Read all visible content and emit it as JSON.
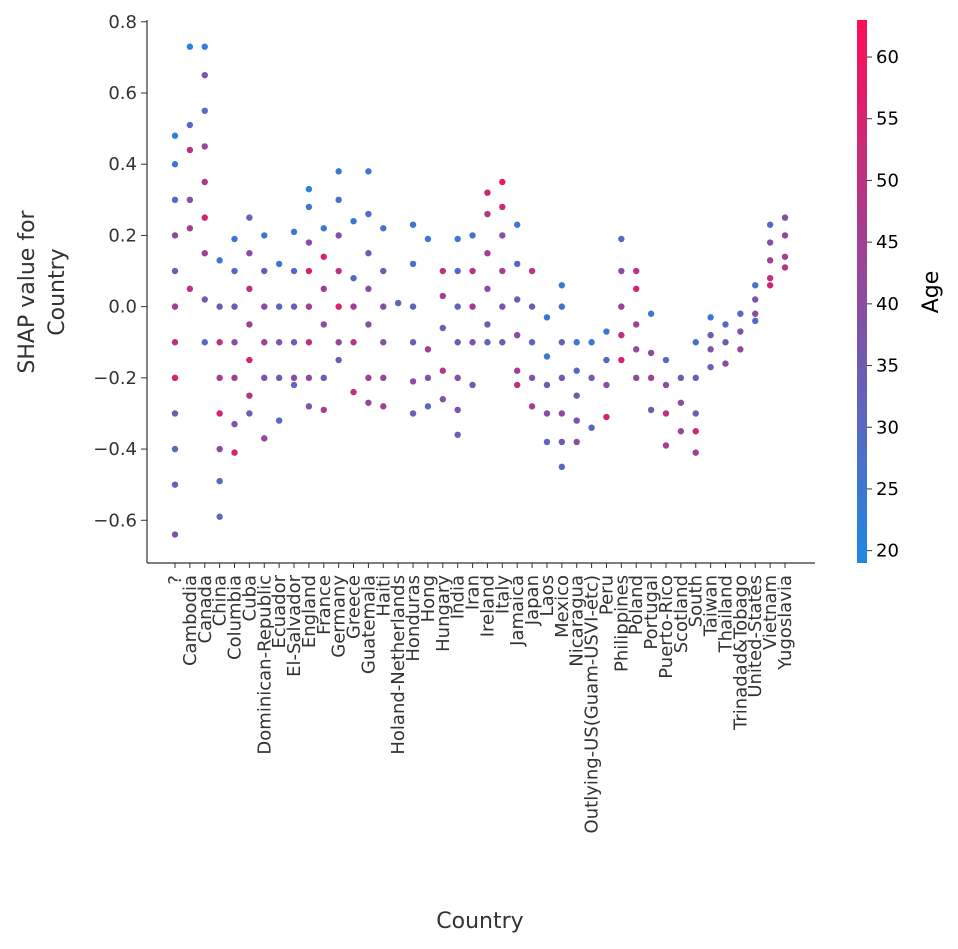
{
  "chart_data": {
    "type": "scatter",
    "xlabel": "Country",
    "ylabel": [
      "SHAP value for",
      "Country"
    ],
    "colorbar_label": "Age",
    "colormap": [
      "#1e88e5",
      "#ff0d57"
    ],
    "clim": [
      19,
      63
    ],
    "cticks": [
      20,
      25,
      30,
      35,
      40,
      45,
      50,
      55,
      60
    ],
    "ylim": [
      -0.72,
      0.805
    ],
    "yticks": [
      {
        "value": -0.6,
        "label": "−0.6"
      },
      {
        "value": -0.4,
        "label": "−0.4"
      },
      {
        "value": -0.2,
        "label": "−0.2"
      },
      {
        "value": 0,
        "label": "0.0"
      },
      0.2,
      0.4,
      0.6,
      0.8
    ],
    "categories": [
      "?",
      "Cambodia",
      "Canada",
      "China",
      "Columbia",
      "Cuba",
      "Dominican-Republic",
      "Ecuador",
      "El-Salvador",
      "England",
      "France",
      "Germany",
      "Greece",
      "Guatemala",
      "Haiti",
      "Holand-Netherlands",
      "Honduras",
      "Hong",
      "Hungary",
      "India",
      "Iran",
      "Ireland",
      "Italy",
      "Jamaica",
      "Japan",
      "Laos",
      "Mexico",
      "Nicaragua",
      "Outlying-US(Guam-USVI-etc)",
      "Peru",
      "Philippines",
      "Poland",
      "Portugal",
      "Puerto-Rico",
      "Scotland",
      "South",
      "Taiwan",
      "Thailand",
      "Trinadad&Tobago",
      "United-States",
      "Vietnam",
      "Yugoslavia"
    ],
    "values": [
      [
        0.48,
        0.4,
        0.3,
        0.2,
        0.1,
        0.0,
        -0.1,
        -0.2,
        -0.3,
        -0.4,
        -0.5,
        -0.64
      ],
      [
        0.73,
        0.51,
        0.44,
        0.3,
        0.22,
        0.05
      ],
      [
        0.73,
        0.65,
        0.55,
        0.45,
        0.35,
        0.25,
        0.15,
        0.02,
        -0.1
      ],
      [
        0.13,
        0.0,
        -0.1,
        -0.2,
        -0.3,
        -0.4,
        -0.49,
        -0.59
      ],
      [
        0.19,
        0.1,
        0.0,
        -0.1,
        -0.2,
        -0.33,
        -0.41
      ],
      [
        0.25,
        0.15,
        0.05,
        -0.05,
        -0.15,
        -0.25,
        -0.3
      ],
      [
        0.2,
        0.1,
        0.0,
        -0.1,
        -0.2,
        -0.37
      ],
      [
        0.12,
        0.0,
        -0.1,
        -0.2,
        -0.32
      ],
      [
        0.21,
        0.1,
        0.0,
        -0.1,
        -0.2,
        -0.22
      ],
      [
        0.33,
        0.28,
        0.18,
        0.1,
        0.0,
        -0.1,
        -0.2,
        -0.28
      ],
      [
        0.22,
        0.14,
        0.05,
        -0.05,
        -0.2,
        -0.29
      ],
      [
        0.38,
        0.3,
        0.2,
        0.1,
        0.0,
        -0.1,
        -0.15
      ],
      [
        0.24,
        0.08,
        0.0,
        -0.1,
        -0.24
      ],
      [
        0.38,
        0.26,
        0.15,
        0.05,
        -0.05,
        -0.2,
        -0.27
      ],
      [
        0.22,
        0.1,
        0.0,
        -0.1,
        -0.2,
        -0.28
      ],
      [
        0.01
      ],
      [
        0.23,
        0.12,
        0.0,
        -0.1,
        -0.21,
        -0.3
      ],
      [
        0.19,
        -0.12,
        -0.2,
        -0.28
      ],
      [
        0.1,
        0.03,
        -0.06,
        -0.18,
        -0.26
      ],
      [
        0.19,
        0.1,
        0.0,
        -0.1,
        -0.2,
        -0.29,
        -0.36
      ],
      [
        0.2,
        0.1,
        0.0,
        -0.1,
        -0.22
      ],
      [
        0.32,
        0.26,
        0.15,
        0.05,
        -0.05,
        -0.1
      ],
      [
        0.35,
        0.28,
        0.2,
        0.1,
        0.0,
        -0.1
      ],
      [
        0.23,
        0.12,
        0.02,
        -0.08,
        -0.18,
        -0.22
      ],
      [
        0.1,
        0.0,
        -0.1,
        -0.2,
        -0.28
      ],
      [
        -0.03,
        -0.14,
        -0.22,
        -0.3,
        -0.38
      ],
      [
        0.06,
        0.0,
        -0.1,
        -0.2,
        -0.3,
        -0.38,
        -0.45
      ],
      [
        -0.1,
        -0.18,
        -0.25,
        -0.32,
        -0.38
      ],
      [
        -0.1,
        -0.2,
        -0.34
      ],
      [
        -0.07,
        -0.15,
        -0.22,
        -0.31
      ],
      [
        0.19,
        0.1,
        0.0,
        -0.08,
        -0.15
      ],
      [
        0.1,
        0.05,
        -0.05,
        -0.12,
        -0.2
      ],
      [
        -0.02,
        -0.13,
        -0.2,
        -0.29
      ],
      [
        -0.15,
        -0.22,
        -0.3,
        -0.39
      ],
      [
        -0.2,
        -0.27,
        -0.35
      ],
      [
        -0.1,
        -0.2,
        -0.3,
        -0.35,
        -0.41
      ],
      [
        -0.03,
        -0.08,
        -0.12,
        -0.17
      ],
      [
        -0.05,
        -0.1,
        -0.16
      ],
      [
        -0.02,
        -0.07,
        -0.12
      ],
      [
        0.06,
        0.02,
        -0.02,
        -0.04
      ],
      [
        0.23,
        0.18,
        0.13,
        0.08,
        0.06
      ],
      [
        0.25,
        0.2,
        0.14,
        0.11
      ]
    ],
    "color_values": [
      [
        22,
        25,
        30,
        40,
        35,
        45,
        50,
        55,
        35,
        30,
        32,
        38
      ],
      [
        20,
        30,
        50,
        40,
        45,
        50
      ],
      [
        22,
        38,
        30,
        42,
        48,
        55,
        45,
        35,
        30
      ],
      [
        25,
        35,
        50,
        45,
        55,
        40,
        30,
        32
      ],
      [
        25,
        30,
        35,
        40,
        45,
        38,
        55
      ],
      [
        32,
        40,
        50,
        45,
        55,
        48,
        35
      ],
      [
        25,
        35,
        40,
        45,
        38,
        42
      ],
      [
        25,
        32,
        38,
        35,
        30
      ],
      [
        25,
        30,
        34,
        36,
        40,
        32
      ],
      [
        22,
        25,
        40,
        55,
        45,
        50,
        42,
        38
      ],
      [
        25,
        55,
        45,
        40,
        35,
        45
      ],
      [
        25,
        28,
        40,
        50,
        55,
        42,
        35
      ],
      [
        25,
        30,
        45,
        48,
        50
      ],
      [
        25,
        30,
        35,
        40,
        38,
        45,
        42
      ],
      [
        28,
        35,
        40,
        38,
        42,
        45
      ],
      [
        32
      ],
      [
        25,
        28,
        32,
        35,
        40,
        34
      ],
      [
        25,
        45,
        38,
        30
      ],
      [
        50,
        45,
        35,
        48,
        38
      ],
      [
        25,
        30,
        32,
        35,
        40,
        38,
        34
      ],
      [
        28,
        50,
        45,
        38,
        35
      ],
      [
        55,
        48,
        45,
        40,
        35,
        32
      ],
      [
        58,
        52,
        40,
        45,
        38,
        35
      ],
      [
        25,
        30,
        35,
        40,
        45,
        50
      ],
      [
        50,
        35,
        32,
        38,
        45
      ],
      [
        25,
        25,
        35,
        40,
        32
      ],
      [
        25,
        28,
        33,
        36,
        40,
        35,
        30
      ],
      [
        25,
        30,
        35,
        38,
        40
      ],
      [
        25,
        35,
        30
      ],
      [
        25,
        30,
        40,
        55
      ],
      [
        30,
        40,
        45,
        50,
        55
      ],
      [
        50,
        55,
        45,
        40,
        42
      ],
      [
        25,
        40,
        45,
        35
      ],
      [
        30,
        40,
        50,
        45
      ],
      [
        35,
        40,
        42
      ],
      [
        28,
        33,
        35,
        55,
        45
      ],
      [
        25,
        35,
        38,
        32
      ],
      [
        30,
        35,
        40
      ],
      [
        30,
        38,
        42
      ],
      [
        28,
        38,
        40,
        30
      ],
      [
        30,
        38,
        45,
        50,
        55
      ],
      [
        38,
        42,
        44,
        48
      ]
    ]
  }
}
